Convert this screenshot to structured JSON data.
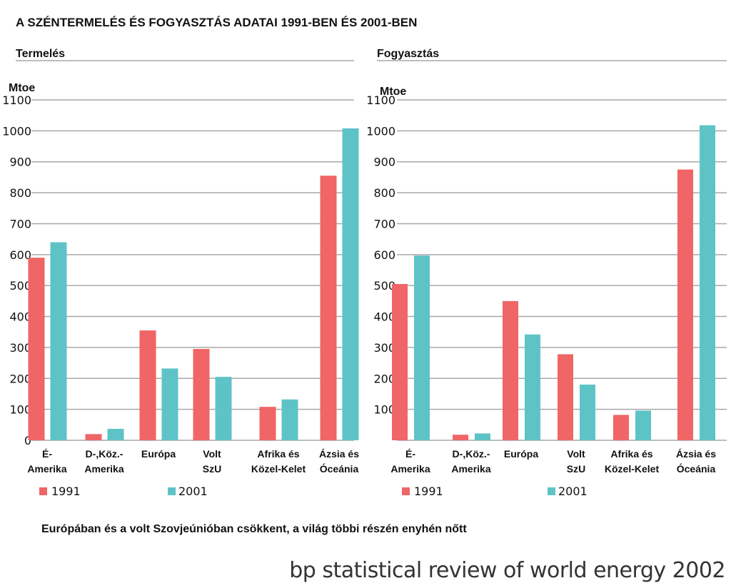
{
  "title": "A SZÉNTERMELÉS ÉS FOGYASZTÁS ADATAI 1991-BEN ÉS 2001-BEN",
  "footnote": "Európában és a volt Szovjeúnióban csökkent, a világ többi részén enyhén nőtt",
  "source": "bp statistical review of world energy 2002",
  "colors": {
    "s1991": "#f06565",
    "s2001": "#5ec3c7",
    "grid": "#a8a8a8"
  },
  "chart_data": [
    {
      "type": "bar",
      "section_title": "Termelés",
      "ylabel": "Mtoe",
      "ylim": [
        0,
        1100
      ],
      "yticks": [
        "0",
        "100",
        "200",
        "300",
        "400",
        "500",
        "600",
        "700",
        "800",
        "900",
        "1000",
        "1100"
      ],
      "categories": [
        [
          "É-",
          "Amerika"
        ],
        [
          "D-,Köz.-",
          "Amerika"
        ],
        [
          "Európa"
        ],
        [
          "Volt",
          "SzU"
        ],
        [
          "Afrika és",
          "Közel-Kelet"
        ],
        [
          "Ázsia és",
          "Óceánia"
        ]
      ],
      "series": [
        {
          "name": "1991",
          "values": [
            590,
            20,
            355,
            295,
            108,
            855
          ]
        },
        {
          "name": "2001",
          "values": [
            640,
            37,
            232,
            205,
            132,
            1008
          ]
        }
      ]
    },
    {
      "type": "bar",
      "section_title": "Fogyasztás",
      "ylabel": "Mtoe",
      "ylim": [
        0,
        1100
      ],
      "yticks": [
        "100",
        "200",
        "300",
        "400",
        "500",
        "600",
        "700",
        "800",
        "900",
        "1000",
        "1100"
      ],
      "categories": [
        [
          "É-",
          "Amerika"
        ],
        [
          "D-,Köz.-",
          "Amerika"
        ],
        [
          "Európa"
        ],
        [
          "Volt",
          "SzU"
        ],
        [
          "Afrika és",
          "Közel-Kelet"
        ],
        [
          "Ázsia és",
          "Óceánia"
        ]
      ],
      "series": [
        {
          "name": "1991",
          "values": [
            505,
            18,
            450,
            278,
            82,
            875
          ]
        },
        {
          "name": "2001",
          "values": [
            597,
            22,
            342,
            180,
            96,
            1018
          ]
        }
      ]
    }
  ]
}
